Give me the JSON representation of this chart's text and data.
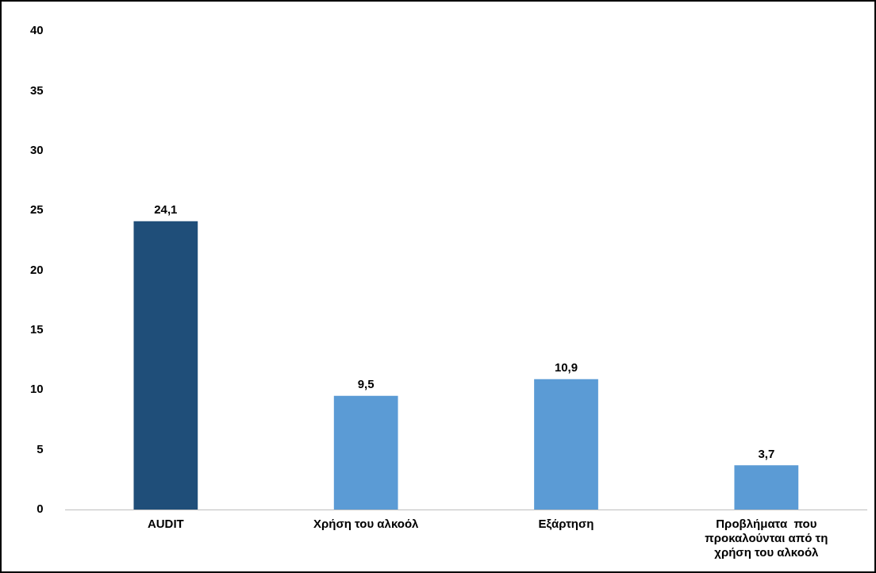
{
  "chart_data": {
    "type": "bar",
    "categories": [
      "AUDIT",
      "Χρήση του αλκοόλ",
      "Εξάρτηση",
      "Προβλήματα  που προκαλούνται από τη χρήση του αλκοόλ"
    ],
    "values": [
      24.1,
      9.5,
      10.9,
      3.7
    ],
    "colors": [
      "#1f4e79",
      "#5b9bd5",
      "#5b9bd5",
      "#5b9bd5"
    ],
    "value_labels": [
      "24,1",
      "9,5",
      "10,9",
      "3,7"
    ],
    "ylim": [
      0,
      40
    ],
    "yticks": [
      0,
      5,
      10,
      15,
      20,
      25,
      30,
      35,
      40
    ],
    "grid": false,
    "legend": false
  }
}
